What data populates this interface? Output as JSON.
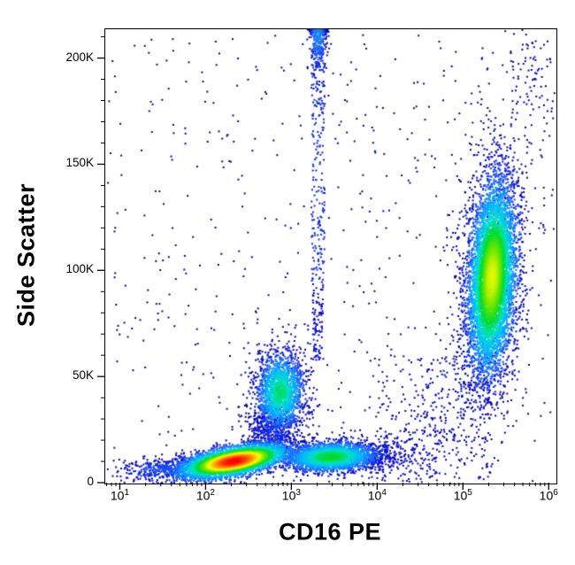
{
  "chart_data": {
    "type": "scatter",
    "subtype": "flow-cytometry-density-dot-plot",
    "title": "",
    "xlabel": "CD16 PE",
    "ylabel": "Side Scatter",
    "x_scale": "log10",
    "xlim_log10": [
      0.82,
      6.08
    ],
    "ylim": [
      0,
      214000
    ],
    "grid": false,
    "legend": "none",
    "x_ticks": [
      {
        "exp": 1,
        "base": "10",
        "sup": "1"
      },
      {
        "exp": 2,
        "base": "10",
        "sup": "2"
      },
      {
        "exp": 3,
        "base": "10",
        "sup": "3"
      },
      {
        "exp": 4,
        "base": "10",
        "sup": "4"
      },
      {
        "exp": 5,
        "base": "10",
        "sup": "5"
      },
      {
        "exp": 6,
        "base": "10",
        "sup": "6"
      }
    ],
    "y_ticks": [
      {
        "value": 0,
        "label": "0"
      },
      {
        "value": 50000,
        "label": "50K"
      },
      {
        "value": 100000,
        "label": "100K"
      },
      {
        "value": 150000,
        "label": "150K"
      },
      {
        "value": 200000,
        "label": "200K"
      }
    ],
    "y_minor_step": 10000,
    "point_size": 2,
    "seed": 1234,
    "colormap": [
      {
        "t": 0.0,
        "c": "#00008B"
      },
      {
        "t": 0.12,
        "c": "#0000CD"
      },
      {
        "t": 0.25,
        "c": "#1E64FF"
      },
      {
        "t": 0.4,
        "c": "#00B4FF"
      },
      {
        "t": 0.52,
        "c": "#00E0C8"
      },
      {
        "t": 0.62,
        "c": "#00DC28"
      },
      {
        "t": 0.72,
        "c": "#7DE800"
      },
      {
        "t": 0.8,
        "c": "#FFFF00"
      },
      {
        "t": 0.9,
        "c": "#FF8C00"
      },
      {
        "t": 1.0,
        "c": "#FF0000"
      }
    ],
    "populations": [
      {
        "name": "lymphocytes-core",
        "type": "gaussian",
        "n": 5200,
        "cx": 2.32,
        "cy": 10500,
        "sx": 0.3,
        "sy": 3200,
        "slope": 7000,
        "level": 1.0
      },
      {
        "name": "lymphocytes-left-tail",
        "type": "gaussian",
        "n": 420,
        "cx": 1.55,
        "cy": 7000,
        "sx": 0.32,
        "sy": 2800,
        "slope": 3000,
        "level": 0.22
      },
      {
        "name": "monocytes",
        "type": "gaussian",
        "n": 1700,
        "cx": 2.86,
        "cy": 43000,
        "sx": 0.13,
        "sy": 8500,
        "slope": 2000,
        "level": 0.58
      },
      {
        "name": "monocytes-halo",
        "type": "gaussian",
        "n": 420,
        "cx": 2.85,
        "cy": 40000,
        "sx": 0.2,
        "sy": 15000,
        "slope": 0,
        "level": 0.14
      },
      {
        "name": "monocyte-lymph-bridge",
        "type": "gaussian",
        "n": 420,
        "cx": 2.78,
        "cy": 24000,
        "sx": 0.16,
        "sy": 8000,
        "slope": 0,
        "level": 0.18
      },
      {
        "name": "nk-band",
        "type": "gaussian",
        "n": 2600,
        "cx": 3.45,
        "cy": 12500,
        "sx": 0.26,
        "sy": 3300,
        "slope": 1500,
        "level": 0.62
      },
      {
        "name": "nk-band-right-tail",
        "type": "gaussian",
        "n": 300,
        "cx": 3.95,
        "cy": 13500,
        "sx": 0.28,
        "sy": 4500,
        "slope": 0,
        "level": 0.16
      },
      {
        "name": "neutrophils",
        "type": "gaussian",
        "n": 6500,
        "cx": 5.33,
        "cy": 97000,
        "sx": 0.135,
        "sy": 21000,
        "slope": 35000,
        "level": 0.78
      },
      {
        "name": "neutrophils-halo",
        "type": "gaussian",
        "n": 800,
        "cx": 5.31,
        "cy": 97000,
        "sx": 0.24,
        "sy": 36000,
        "slope": 35000,
        "level": 0.13
      },
      {
        "name": "doublet-streak",
        "type": "uniform",
        "n": 230,
        "x0": 3.22,
        "x1": 3.38,
        "y0": 95000,
        "y1": 214000,
        "level": 0.17
      },
      {
        "name": "doublet-streak-top",
        "type": "gaussian",
        "n": 430,
        "cx": 3.3,
        "cy": 212000,
        "sx": 0.05,
        "sy": 9000,
        "slope": 0,
        "level": 0.32,
        "clamp_top": true
      },
      {
        "name": "doublet-streak-lower",
        "type": "uniform",
        "n": 90,
        "x0": 3.24,
        "x1": 3.36,
        "y0": 58000,
        "y1": 95000,
        "level": 0.12
      },
      {
        "name": "right-low-scatter",
        "type": "uniform",
        "n": 240,
        "x0": 3.9,
        "x1": 5.35,
        "y0": 2000,
        "y1": 60000,
        "level": 0.09
      },
      {
        "name": "diagonal-trail",
        "type": "gaussian",
        "n": 190,
        "cx": 4.65,
        "cy": 24000,
        "sx": 0.33,
        "sy": 14000,
        "slope": 40000,
        "level": 0.11
      },
      {
        "name": "top-right-sparse",
        "type": "gaussian",
        "n": 90,
        "cx": 5.8,
        "cy": 190000,
        "sx": 0.16,
        "sy": 16000,
        "slope": 0,
        "level": 0.1
      },
      {
        "name": "background",
        "type": "uniform",
        "n": 600,
        "x0": 0.85,
        "x1": 6.05,
        "y0": 1000,
        "y1": 212000,
        "level": 0.06
      }
    ]
  }
}
